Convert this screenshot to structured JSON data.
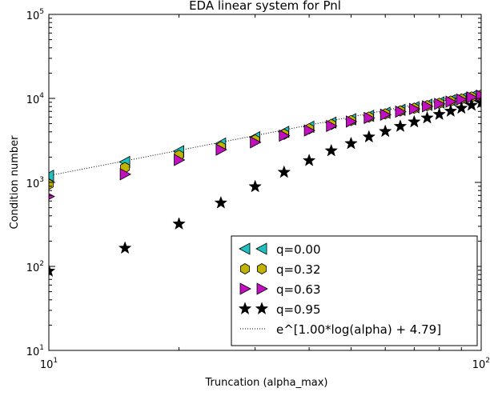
{
  "chart_data": {
    "type": "scatter",
    "title": "EDA linear system for Pnl",
    "xlabel": "Truncation (alpha_max)",
    "ylabel": "Condition number",
    "xscale": "log",
    "yscale": "log",
    "xlim": [
      10,
      100
    ],
    "ylim": [
      10,
      100000
    ],
    "x_ticks": [
      {
        "value": 10,
        "base": "10",
        "exp": "1"
      },
      {
        "value": 100,
        "base": "10",
        "exp": "2"
      }
    ],
    "y_ticks": [
      {
        "value": 10,
        "base": "10",
        "exp": "1"
      },
      {
        "value": 100,
        "base": "10",
        "exp": "2"
      },
      {
        "value": 1000,
        "base": "10",
        "exp": "3"
      },
      {
        "value": 10000,
        "base": "10",
        "exp": "4"
      },
      {
        "value": 100000,
        "base": "10",
        "exp": "5"
      }
    ],
    "grid": false,
    "legend_position": "lower-right",
    "series": [
      {
        "name": "q=0.00",
        "marker": "triangle-left",
        "color": "#20c0c0",
        "x": [
          10,
          15,
          20,
          25,
          30,
          35,
          40,
          45,
          50,
          55,
          60,
          65,
          70,
          75,
          80,
          85,
          90,
          95,
          100
        ],
        "y": [
          1200,
          1750,
          2350,
          2900,
          3450,
          4000,
          4600,
          5150,
          5650,
          6200,
          6750,
          7300,
          7850,
          8400,
          8950,
          9500,
          10000,
          10600,
          11200
        ]
      },
      {
        "name": "q=0.32",
        "marker": "hexagon",
        "color": "#c0b400",
        "x": [
          10,
          15,
          20,
          25,
          30,
          35,
          40,
          45,
          50,
          55,
          60,
          65,
          70,
          75,
          80,
          85,
          90,
          95,
          100
        ],
        "y": [
          950,
          1500,
          2100,
          2650,
          3200,
          3750,
          4350,
          4900,
          5450,
          6000,
          6550,
          7100,
          7650,
          8200,
          8750,
          9300,
          9850,
          10400,
          11000
        ]
      },
      {
        "name": "q=0.63",
        "marker": "triangle-right",
        "color": "#c010c0",
        "x": [
          10,
          15,
          20,
          25,
          30,
          35,
          40,
          45,
          50,
          55,
          60,
          65,
          70,
          75,
          80,
          85,
          90,
          95,
          100
        ],
        "y": [
          680,
          1250,
          1850,
          2450,
          3000,
          3600,
          4150,
          4700,
          5300,
          5850,
          6400,
          6950,
          7500,
          8050,
          8600,
          9150,
          9700,
          10300,
          10800
        ]
      },
      {
        "name": "q=0.95",
        "marker": "star",
        "color": "#000000",
        "x": [
          10,
          15,
          20,
          25,
          30,
          35,
          40,
          45,
          50,
          55,
          60,
          65,
          70,
          75,
          80,
          85,
          90,
          95,
          100
        ],
        "y": [
          88,
          165,
          320,
          570,
          890,
          1320,
          1820,
          2380,
          2900,
          3480,
          4050,
          4650,
          5250,
          5850,
          6450,
          7050,
          7650,
          8300,
          8900
        ]
      }
    ],
    "fit_line": {
      "label": "e^[1.00*log(alpha) + 4.79]",
      "slope": 1.0,
      "intercept": 4.79,
      "style": "dotted",
      "color": "#000000"
    }
  }
}
